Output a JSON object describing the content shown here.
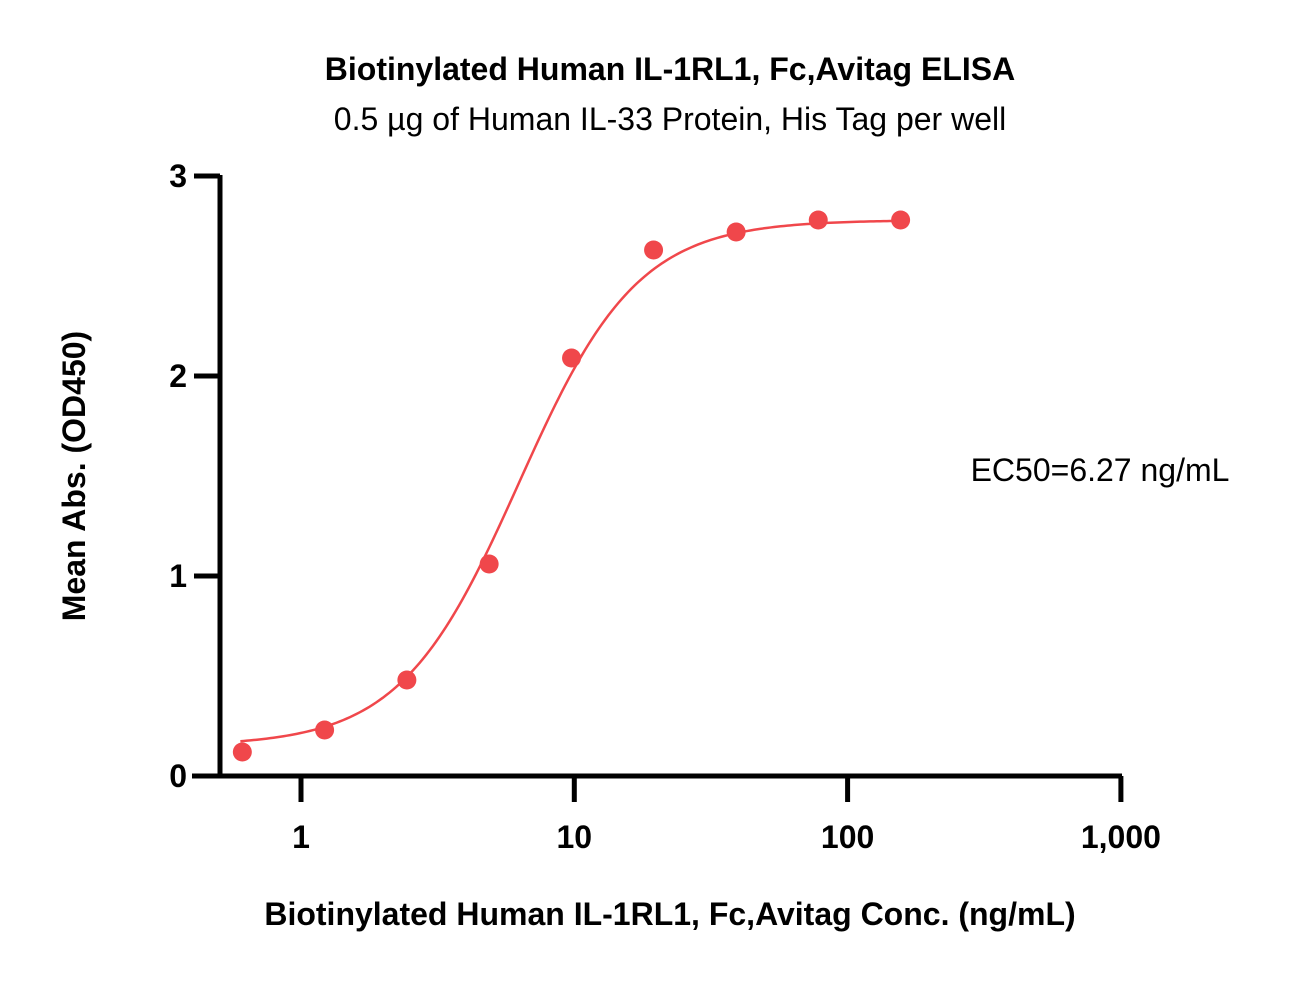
{
  "chart_data": {
    "type": "scatter",
    "title": "Biotinylated Human IL-1RL1, Fc,Avitag ELISA",
    "subtitle": "0.5 µg of Human IL-33 Protein, His Tag per well",
    "xlabel": "Biotinylated Human IL-1RL1, Fc,Avitag Conc. (ng/mL)",
    "ylabel": "Mean Abs. (OD450)",
    "x_scale": "log",
    "xlim": [
      0.6,
      1000
    ],
    "ylim": [
      0,
      3
    ],
    "x_ticks": [
      {
        "value": 1,
        "label": "1"
      },
      {
        "value": 10,
        "label": "10"
      },
      {
        "value": 100,
        "label": "100"
      },
      {
        "value": 1000,
        "label": "1,000"
      }
    ],
    "y_ticks": [
      {
        "value": 0,
        "label": "0"
      },
      {
        "value": 1,
        "label": "1"
      },
      {
        "value": 2,
        "label": "2"
      },
      {
        "value": 3,
        "label": "3"
      }
    ],
    "grid": false,
    "legend": "none",
    "color": "#f0474b",
    "series": [
      {
        "x": [
          0.61,
          1.22,
          2.44,
          4.88,
          9.77,
          19.5,
          39.1,
          78.1,
          156.3
        ],
        "y": [
          0.12,
          0.23,
          0.48,
          1.06,
          2.09,
          2.63,
          2.72,
          2.78,
          2.78
        ]
      }
    ],
    "fit": {
      "model": "4PL",
      "bottom": 0.15,
      "top": 2.78,
      "ec50": 6.27,
      "hill": 2.0,
      "x_range": [
        0.6,
        160
      ]
    },
    "annotation": "EC50=6.27 ng/mL"
  }
}
